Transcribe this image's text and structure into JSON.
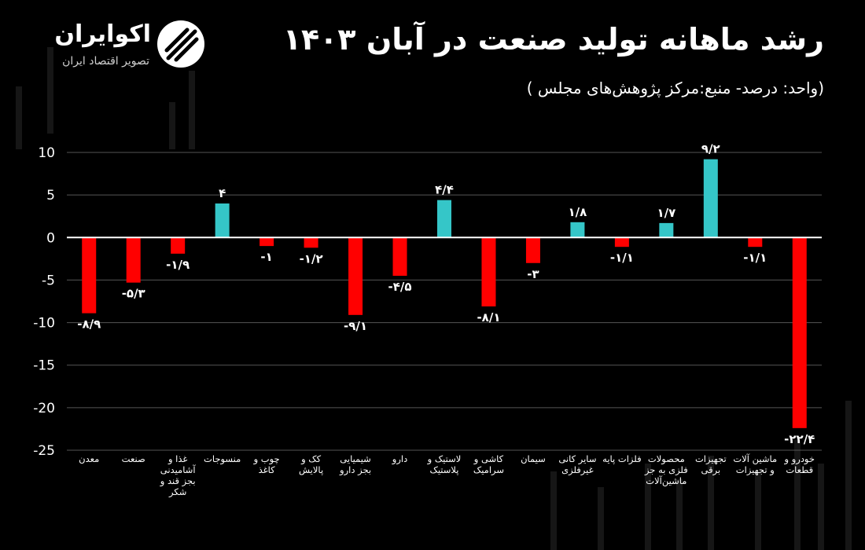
{
  "header": {
    "title": "رشد ماهانه تولید صنعت در آبان ۱۴۰۳",
    "subtitle": "(واحد: درصد- منبع:مرکز پژوهش‌های مجلس )"
  },
  "logo": {
    "name": "اکوایران",
    "tagline": "تصویر اقتصاد ایران",
    "icon": "ecoiran-logo-icon"
  },
  "colors": {
    "background": "#000000",
    "negative": "#ff0000",
    "positive": "#35c6c8",
    "grid": "#555555",
    "zero_line": "#ffffff",
    "text": "#ffffff"
  },
  "chart_data": {
    "type": "bar",
    "ylim": [
      -25,
      10
    ],
    "yticks": [
      10,
      5,
      0,
      -5,
      -10,
      -15,
      -20,
      -25
    ],
    "ytick_labels": [
      "10",
      "5",
      "0",
      "-5",
      "-10",
      "-15",
      "-20",
      "-25"
    ],
    "grid": true,
    "categories": [
      [
        "معدن"
      ],
      [
        "صنعت"
      ],
      [
        "غذا و",
        "آشامیدنی",
        "بجز قند و",
        "شکر"
      ],
      [
        "منسوجات"
      ],
      [
        "چوب و",
        "کاغذ"
      ],
      [
        "کک و",
        "پالایش"
      ],
      [
        "شیمیایی",
        "بجز دارو"
      ],
      [
        "دارو"
      ],
      [
        "لاستیک و",
        "پلاستیک"
      ],
      [
        "کاشی و",
        "سرامیک"
      ],
      [
        "سیمان"
      ],
      [
        "سایر کانی",
        "غیرفلزی"
      ],
      [
        "فلزات پایه"
      ],
      [
        "محصولات",
        "فلزی به جز",
        "ماشین‌آلات"
      ],
      [
        "تجهیزات",
        "برقی"
      ],
      [
        "ماشین آلات",
        "و تجهیزات"
      ],
      [
        "خودرو و",
        "قطعات"
      ]
    ],
    "values": [
      -8.9,
      -5.3,
      -1.9,
      4,
      -1,
      -1.2,
      -9.1,
      -4.5,
      4.4,
      -8.1,
      -3,
      1.8,
      -1.1,
      1.7,
      9.2,
      -1.1,
      -22.4
    ],
    "data_labels": [
      "-۸/۹",
      "-۵/۳",
      "-۱/۹",
      "۴",
      "-۱",
      "-۱/۲",
      "-۹/۱",
      "-۴/۵",
      "۴/۴",
      "-۸/۱",
      "-۳",
      "۱/۸",
      "-۱/۱",
      "۱/۷",
      "۹/۲",
      "-۱/۱",
      "-۲۲/۴"
    ]
  }
}
